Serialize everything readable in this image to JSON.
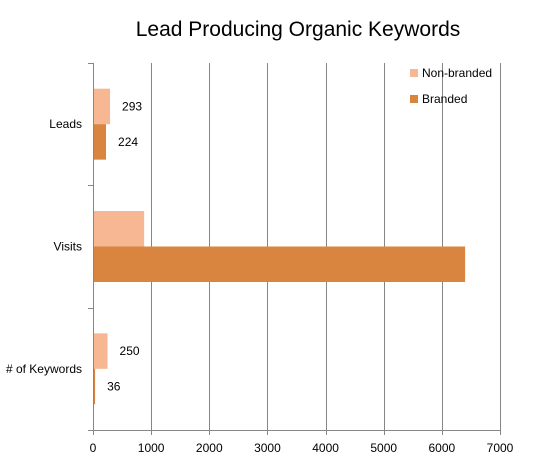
{
  "chart_data": {
    "type": "bar",
    "orientation": "horizontal",
    "title": "Lead Producing Organic Keywords",
    "categories": [
      "Leads",
      "Visits",
      "# of Keywords"
    ],
    "series": [
      {
        "name": "Non-branded",
        "color": "#f7b792",
        "values": [
          293,
          880,
          250
        ],
        "labels": [
          "293",
          "",
          "250"
        ]
      },
      {
        "name": "Branded",
        "color": "#d9843f",
        "values": [
          224,
          6400,
          36
        ],
        "labels": [
          "224",
          "",
          "36"
        ]
      }
    ],
    "xlim": [
      0,
      7000
    ],
    "xticks": [
      "0",
      "1000",
      "2000",
      "3000",
      "4000",
      "5000",
      "6000",
      "7000"
    ],
    "grid": "vertical",
    "legend_position": "top-right"
  }
}
